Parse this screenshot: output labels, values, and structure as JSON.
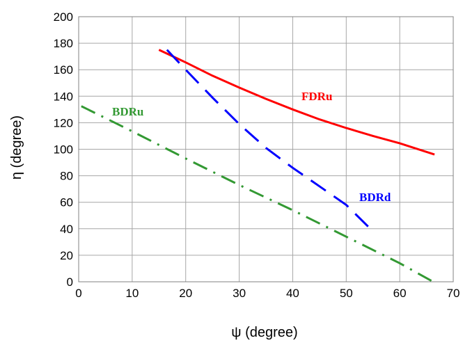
{
  "chart_data": {
    "type": "line",
    "xlabel": "ψ (degree)",
    "ylabel": "η (degree)",
    "xlim": [
      0,
      70
    ],
    "ylim": [
      0,
      200
    ],
    "xticks": [
      0,
      10,
      20,
      30,
      40,
      50,
      60,
      70
    ],
    "yticks": [
      0,
      20,
      40,
      60,
      80,
      100,
      120,
      140,
      160,
      180,
      200
    ],
    "grid": true,
    "series": [
      {
        "name": "FDRu",
        "color": "#ff0000",
        "style": "solid",
        "x": [
          15,
          20,
          25,
          30,
          35,
          40,
          45,
          50,
          55,
          60,
          66.5
        ],
        "y": [
          175,
          165.5,
          155.5,
          146.5,
          138,
          130,
          122.5,
          116,
          110,
          104.5,
          96
        ]
      },
      {
        "name": "BDRd",
        "color": "#0000ff",
        "style": "long-dash",
        "x": [
          16.5,
          20,
          25,
          30,
          35,
          40,
          45,
          50,
          54.5
        ],
        "y": [
          175,
          160,
          139,
          119,
          101,
          86,
          72,
          58,
          40
        ]
      },
      {
        "name": "BDRu",
        "color": "#339933",
        "style": "dash-dot",
        "x": [
          0.5,
          5,
          10,
          20,
          30,
          40,
          50,
          60,
          66
        ],
        "y": [
          132.5,
          123.5,
          113.5,
          93,
          73,
          54,
          34,
          14,
          0.5
        ]
      }
    ]
  }
}
